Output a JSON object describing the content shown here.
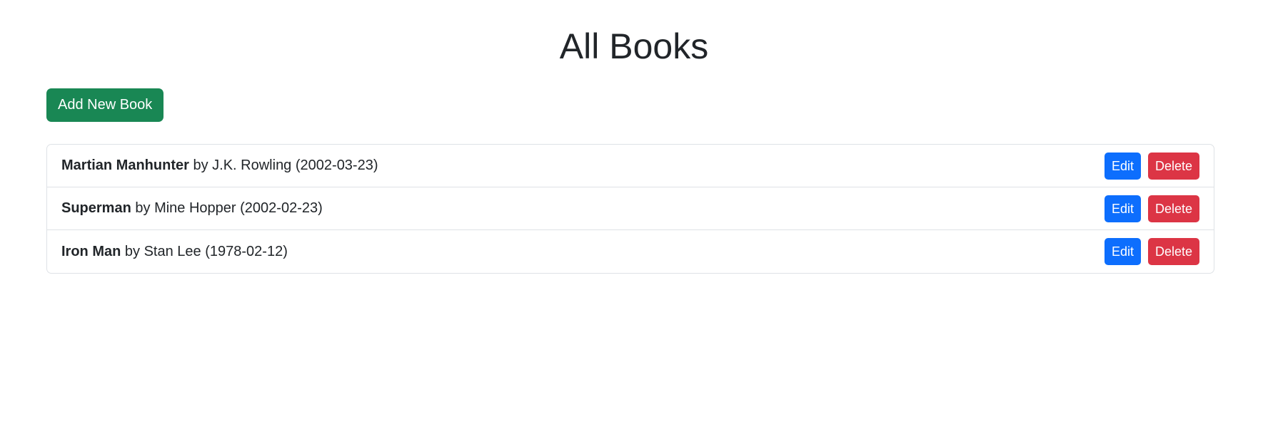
{
  "page": {
    "title": "All Books"
  },
  "toolbar": {
    "add_label": "Add New Book"
  },
  "books": [
    {
      "title": "Martian Manhunter",
      "by": "by",
      "author": "J.K. Rowling",
      "date": "(2002-03-23)",
      "edit_label": "Edit",
      "delete_label": "Delete"
    },
    {
      "title": "Superman",
      "by": "by",
      "author": "Mine Hopper",
      "date": "(2002-02-23)",
      "edit_label": "Edit",
      "delete_label": "Delete"
    },
    {
      "title": "Iron Man",
      "by": "by",
      "author": "Stan Lee",
      "date": "(1978-02-12)",
      "edit_label": "Edit",
      "delete_label": "Delete"
    }
  ],
  "colors": {
    "add_button": "#198754",
    "edit_button": "#0d6efd",
    "delete_button": "#dc3545",
    "border": "#dee2e6",
    "text": "#212529"
  }
}
